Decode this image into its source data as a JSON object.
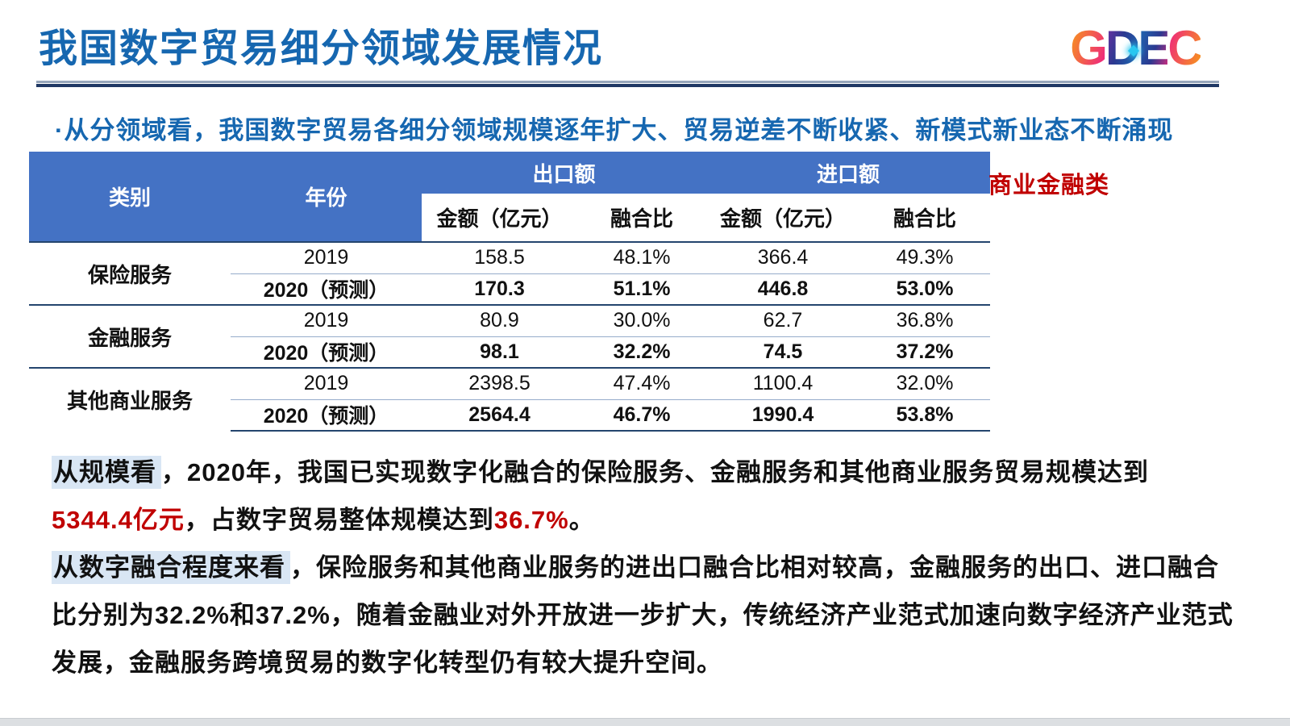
{
  "title": "我国数字贸易细分领域发展情况",
  "logo": {
    "g": "G",
    "d": "D",
    "e": "E",
    "c": "C"
  },
  "bullet": "·从分领域看，我国数字贸易各细分领域规模逐年扩大、贸易逆差不断收紧、新模式新业态不断涌现",
  "side_label": "商业金融类",
  "table": {
    "headers": {
      "category": "类别",
      "year": "年份",
      "export_group": "出口额",
      "import_group": "进口额",
      "amount": "金额（亿元）",
      "ratio": "融合比"
    },
    "groups": [
      {
        "category": "保险服务",
        "rows": [
          {
            "year": "2019",
            "export_amount": "158.5",
            "export_ratio": "48.1%",
            "import_amount": "366.4",
            "import_ratio": "49.3%"
          },
          {
            "year": "2020（预测）",
            "export_amount": "170.3",
            "export_ratio": "51.1%",
            "import_amount": "446.8",
            "import_ratio": "53.0%"
          }
        ]
      },
      {
        "category": "金融服务",
        "rows": [
          {
            "year": "2019",
            "export_amount": "80.9",
            "export_ratio": "30.0%",
            "import_amount": "62.7",
            "import_ratio": "36.8%"
          },
          {
            "year": "2020（预测）",
            "export_amount": "98.1",
            "export_ratio": "32.2%",
            "import_amount": "74.5",
            "import_ratio": "37.2%"
          }
        ]
      },
      {
        "category": "其他商业服务",
        "rows": [
          {
            "year": "2019",
            "export_amount": "2398.5",
            "export_ratio": "47.4%",
            "import_amount": "1100.4",
            "import_ratio": "32.0%"
          },
          {
            "year": "2020（预测）",
            "export_amount": "2564.4",
            "export_ratio": "46.7%",
            "import_amount": "1990.4",
            "import_ratio": "53.8%"
          }
        ]
      }
    ]
  },
  "paragraphs": {
    "p1": {
      "highlight": "从规模看",
      "t1": "，2020年，我国已实现数字化融合的保险服务、金融服务和其他商业服务贸易规模达到",
      "red1": "5344.4亿元",
      "t2": "，占数字贸易整体规模达到",
      "red2": "36.7%",
      "t3": "。"
    },
    "p2": {
      "highlight": "从数字融合程度来看",
      "t1": "，保险服务和其他商业服务的进出口融合比相对较高，金融服务的出口、进口融合比分别为32.2%和37.2%，随着金融业对外开放进一步扩大，传统经济产业范式加速向数字经济产业范式发展，金融服务跨境贸易的数字化转型仍有较大提升空间。"
    }
  },
  "colors": {
    "title_blue": "#1667B0",
    "table_header_blue": "#4472C4",
    "accent_red": "#C00000",
    "highlight_blue": "#D9E6F4",
    "divider_navy": "#1F3864"
  }
}
